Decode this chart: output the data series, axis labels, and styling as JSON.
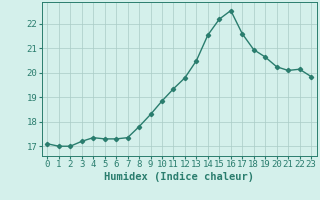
{
  "x": [
    0,
    1,
    2,
    3,
    4,
    5,
    6,
    7,
    8,
    9,
    10,
    11,
    12,
    13,
    14,
    15,
    16,
    17,
    18,
    19,
    20,
    21,
    22,
    23
  ],
  "y": [
    17.1,
    17.0,
    17.0,
    17.2,
    17.35,
    17.3,
    17.3,
    17.35,
    17.8,
    18.3,
    18.85,
    19.35,
    19.8,
    20.5,
    21.55,
    22.2,
    22.55,
    21.6,
    20.95,
    20.65,
    20.25,
    20.1,
    20.15,
    19.85
  ],
  "line_color": "#2a7d6e",
  "bg_color": "#d4f0eb",
  "grid_color": "#aaccc6",
  "tick_color": "#2a7d6e",
  "xlabel": "Humidex (Indice chaleur)",
  "ylim": [
    16.6,
    22.9
  ],
  "xlim": [
    -0.5,
    23.5
  ],
  "yticks": [
    17,
    18,
    19,
    20,
    21,
    22
  ],
  "xticks": [
    0,
    1,
    2,
    3,
    4,
    5,
    6,
    7,
    8,
    9,
    10,
    11,
    12,
    13,
    14,
    15,
    16,
    17,
    18,
    19,
    20,
    21,
    22,
    23
  ],
  "marker": "D",
  "marker_size": 2.2,
  "line_width": 1.0,
  "xlabel_fontsize": 7.5,
  "tick_fontsize": 6.5
}
